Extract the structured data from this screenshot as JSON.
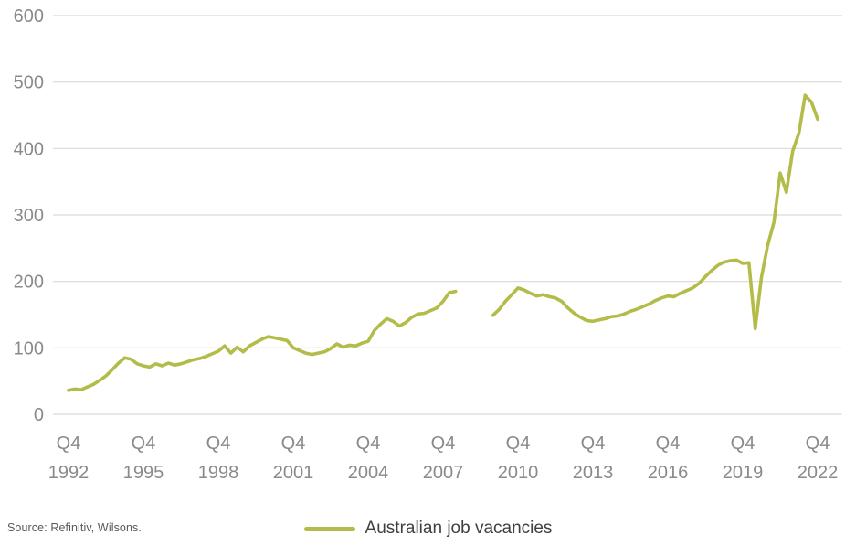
{
  "footer": {
    "source": "Source: Refinitiv, Wilsons."
  },
  "legend": {
    "label": "Australian job vacancies",
    "color": "#b4bc49"
  },
  "chart_data": {
    "type": "line",
    "title": "",
    "xlabel": "",
    "ylabel": "",
    "ylim": [
      0,
      600
    ],
    "y_ticks": [
      0,
      100,
      200,
      300,
      400,
      500,
      600
    ],
    "grid": "horizontal",
    "legend_position": "bottom-center",
    "x_note": "Quarterly data from Q4 1992 to Q4 2022; visible gap in line from Q3 2008 to Q3 2009",
    "x_tick_indices": [
      0,
      12,
      24,
      36,
      48,
      60,
      72,
      84,
      96,
      108,
      120
    ],
    "x_ticks": [
      {
        "line1": "Q4",
        "line2": "1992"
      },
      {
        "line1": "Q4",
        "line2": "1995"
      },
      {
        "line1": "Q4",
        "line2": "1998"
      },
      {
        "line1": "Q4",
        "line2": "2001"
      },
      {
        "line1": "Q4",
        "line2": "2004"
      },
      {
        "line1": "Q4",
        "line2": "2007"
      },
      {
        "line1": "Q4",
        "line2": "2010"
      },
      {
        "line1": "Q4",
        "line2": "2013"
      },
      {
        "line1": "Q4",
        "line2": "2016"
      },
      {
        "line1": "Q4",
        "line2": "2019"
      },
      {
        "line1": "Q4",
        "line2": "2022"
      }
    ],
    "series": [
      {
        "name": "Australian job vacancies",
        "color": "#b4bc49",
        "values": [
          36,
          38,
          37,
          41,
          45,
          51,
          58,
          67,
          77,
          85,
          83,
          76,
          73,
          71,
          76,
          73,
          77,
          74,
          76,
          79,
          82,
          84,
          87,
          91,
          95,
          103,
          92,
          101,
          94,
          103,
          108,
          113,
          117,
          115,
          113,
          111,
          100,
          96,
          92,
          90,
          92,
          94,
          99,
          106,
          101,
          104,
          103,
          107,
          110,
          126,
          136,
          144,
          140,
          133,
          138,
          146,
          151,
          152,
          156,
          160,
          170,
          183,
          185,
          null,
          null,
          null,
          null,
          null,
          149,
          158,
          170,
          180,
          190,
          187,
          182,
          178,
          180,
          177,
          175,
          170,
          160,
          152,
          146,
          141,
          140,
          142,
          144,
          147,
          148,
          151,
          155,
          158,
          162,
          166,
          171,
          175,
          178,
          177,
          182,
          186,
          190,
          197,
          207,
          216,
          224,
          229,
          231,
          232,
          227,
          228,
          129,
          206,
          254,
          289,
          363,
          334,
          396,
          423,
          480,
          470,
          444
        ]
      }
    ]
  }
}
